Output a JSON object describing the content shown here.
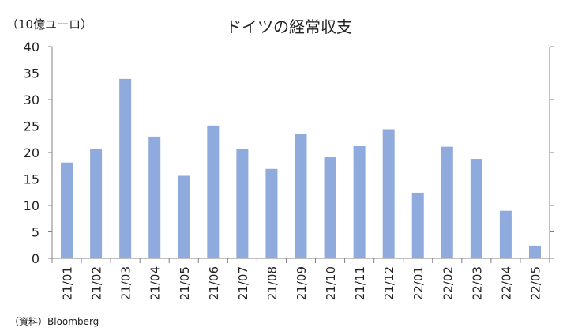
{
  "chart_data": {
    "type": "bar",
    "title": "ドイツの経常収支",
    "unit_label": "（10億ユーロ）",
    "source": "（資料）Bloomberg",
    "categories": [
      "21/01",
      "21/02",
      "21/03",
      "21/04",
      "21/05",
      "21/06",
      "21/07",
      "21/08",
      "21/09",
      "21/10",
      "21/11",
      "21/12",
      "22/01",
      "22/02",
      "22/03",
      "22/04",
      "22/05"
    ],
    "values": [
      18.1,
      20.7,
      33.9,
      23.0,
      15.6,
      25.1,
      20.6,
      16.9,
      23.5,
      19.1,
      21.2,
      24.4,
      12.4,
      21.1,
      18.8,
      9.0,
      2.4
    ],
    "ylim": [
      0,
      40
    ],
    "yticks": [
      0,
      5,
      10,
      15,
      20,
      25,
      30,
      35,
      40
    ],
    "bar_color": "#8faadc",
    "grid": false,
    "legend": false
  }
}
